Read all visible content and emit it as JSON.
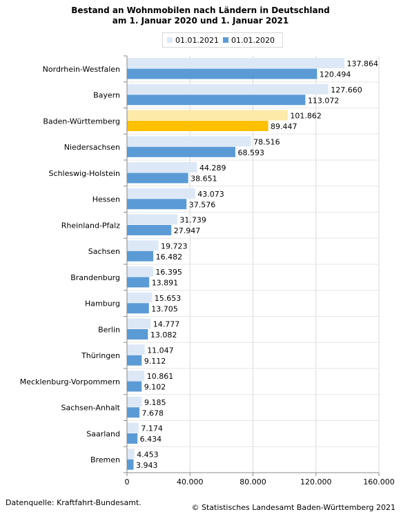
{
  "chart_data": {
    "type": "bar",
    "orientation": "horizontal",
    "title_line1": "Bestand an Wohnmobilen nach Ländern in Deutschland",
    "title_line2": "am 1. Januar 2020 und 1. Januar 2021",
    "categories": [
      "Nordrhein-Westfalen",
      "Bayern",
      "Baden-Württemberg",
      "Niedersachsen",
      "Schleswig-Holstein",
      "Hessen",
      "Rheinland-Pfalz",
      "Sachsen",
      "Brandenburg",
      "Hamburg",
      "Berlin",
      "Thüringen",
      "Mecklenburg-Vorpommern",
      "Sachsen-Anhalt",
      "Saarland",
      "Bremen"
    ],
    "series": [
      {
        "name": "01.01.2021",
        "color": "#dde8f7",
        "highlight_color": "#fdeaa8",
        "values": [
          137864,
          127660,
          101862,
          78516,
          44289,
          43073,
          31739,
          19723,
          16395,
          15653,
          14777,
          11047,
          10861,
          9185,
          7174,
          4453
        ],
        "labels": [
          "137.864",
          "127.660",
          "101.862",
          "78.516",
          "44.289",
          "43.073",
          "31.739",
          "19.723",
          "16.395",
          "15.653",
          "14.777",
          "11.047",
          "10.861",
          "9.185",
          "7.174",
          "4.453"
        ]
      },
      {
        "name": "01.01.2020",
        "color": "#5b9bd5",
        "highlight_color": "#ffc000",
        "values": [
          120494,
          113072,
          89447,
          68593,
          38651,
          37576,
          27947,
          16482,
          13891,
          13705,
          13082,
          9112,
          9102,
          7678,
          6434,
          3943
        ],
        "labels": [
          "120.494",
          "113.072",
          "89.447",
          "68.593",
          "38.651",
          "37.576",
          "27.947",
          "16.482",
          "13.891",
          "13.705",
          "13.082",
          "9.112",
          "9.102",
          "7.678",
          "6.434",
          "3.943"
        ]
      }
    ],
    "highlight_category": "Baden-Württemberg",
    "xlim": [
      0,
      160000
    ],
    "x_ticks": [
      0,
      40000,
      80000,
      120000,
      160000
    ],
    "x_tick_labels": [
      "0",
      "40.000",
      "80.000",
      "120.000",
      "160.000"
    ],
    "grid": true,
    "legend_position": "top"
  },
  "footer": {
    "source": "Datenquelle: Kraftfahrt-Bundesamt.",
    "copyright": "© Statistisches Landesamt Baden-Württemberg 2021"
  }
}
